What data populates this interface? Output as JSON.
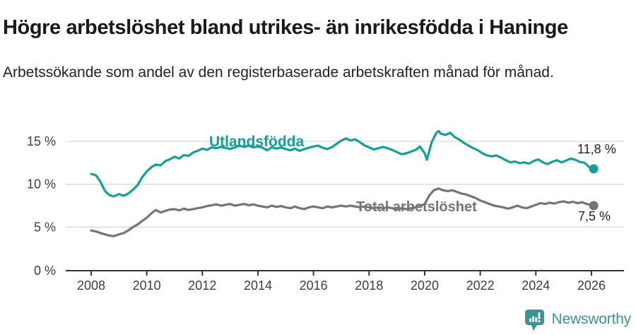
{
  "header": {
    "title": "Högre arbetslöshet bland utrikes- än inrikesfödda i Haninge",
    "subtitle": "Arbetssökande som andel av den registerbaserade arbetskraften månad för månad."
  },
  "footer": {
    "brand": "Newsworthy",
    "logo_icon": "bar-chart-speech-bubble-icon",
    "brand_color": "#3d948d"
  },
  "colors": {
    "accent_teal": "#14a098",
    "neutral_gray": "#757575",
    "axis_line": "#333333",
    "grid_line": "#d9d9d9",
    "tick_text": "#3d3d3d",
    "value_text": "#1f1f1f"
  },
  "chart_data": {
    "type": "line",
    "title": "Högre arbetslöshet bland utrikes- än inrikesfödda i Haninge",
    "subtitle": "Arbetssökande som andel av den registerbaserade arbetskraften månad för månad.",
    "xlabel": "",
    "ylabel": "",
    "xlim": [
      2007.1,
      2027.2
    ],
    "ylim": [
      0,
      17.5
    ],
    "grid": true,
    "legend_position": "inline-labels",
    "y_ticks": [
      0,
      5,
      10,
      15
    ],
    "y_tick_labels": [
      "0 %",
      "5 %",
      "10 %",
      "15 %"
    ],
    "x_ticks": [
      2008,
      2010,
      2012,
      2014,
      2016,
      2018,
      2020,
      2022,
      2024,
      2026
    ],
    "x_tick_labels": [
      "2008",
      "2010",
      "2012",
      "2014",
      "2016",
      "2018",
      "2020",
      "2022",
      "2024",
      "2026"
    ],
    "series": [
      {
        "name": "Utlandsfödda",
        "color": "#14a098",
        "end_value_label": "11,8 %",
        "end_marker": true,
        "points": [
          [
            2008.0,
            11.2
          ],
          [
            2008.17,
            11.05
          ],
          [
            2008.33,
            10.3
          ],
          [
            2008.5,
            9.2
          ],
          [
            2008.67,
            8.7
          ],
          [
            2008.83,
            8.6
          ],
          [
            2009.0,
            8.85
          ],
          [
            2009.17,
            8.65
          ],
          [
            2009.33,
            8.9
          ],
          [
            2009.5,
            9.35
          ],
          [
            2009.67,
            9.9
          ],
          [
            2009.83,
            10.8
          ],
          [
            2010.0,
            11.5
          ],
          [
            2010.17,
            12.0
          ],
          [
            2010.33,
            12.3
          ],
          [
            2010.5,
            12.2
          ],
          [
            2010.67,
            12.7
          ],
          [
            2010.83,
            12.9
          ],
          [
            2011.0,
            13.2
          ],
          [
            2011.17,
            13.0
          ],
          [
            2011.33,
            13.4
          ],
          [
            2011.5,
            13.3
          ],
          [
            2011.67,
            13.7
          ],
          [
            2011.83,
            13.9
          ],
          [
            2012.0,
            14.15
          ],
          [
            2012.17,
            14.0
          ],
          [
            2012.33,
            14.3
          ],
          [
            2012.5,
            14.2
          ],
          [
            2012.67,
            14.35
          ],
          [
            2012.83,
            14.25
          ],
          [
            2013.0,
            14.1
          ],
          [
            2013.17,
            14.3
          ],
          [
            2013.33,
            14.5
          ],
          [
            2013.5,
            14.35
          ],
          [
            2013.67,
            14.5
          ],
          [
            2013.83,
            14.3
          ],
          [
            2014.0,
            14.4
          ],
          [
            2014.17,
            14.25
          ],
          [
            2014.33,
            13.95
          ],
          [
            2014.5,
            14.3
          ],
          [
            2014.67,
            14.15
          ],
          [
            2014.83,
            14.3
          ],
          [
            2015.0,
            14.1
          ],
          [
            2015.17,
            13.95
          ],
          [
            2015.33,
            14.15
          ],
          [
            2015.5,
            13.9
          ],
          [
            2015.67,
            14.1
          ],
          [
            2015.83,
            14.25
          ],
          [
            2016.0,
            14.4
          ],
          [
            2016.17,
            14.5
          ],
          [
            2016.33,
            14.25
          ],
          [
            2016.5,
            14.1
          ],
          [
            2016.67,
            14.35
          ],
          [
            2016.83,
            14.7
          ],
          [
            2017.0,
            15.1
          ],
          [
            2017.17,
            15.35
          ],
          [
            2017.33,
            15.1
          ],
          [
            2017.5,
            15.25
          ],
          [
            2017.67,
            14.9
          ],
          [
            2017.83,
            14.55
          ],
          [
            2018.0,
            14.3
          ],
          [
            2018.17,
            14.05
          ],
          [
            2018.33,
            14.2
          ],
          [
            2018.5,
            14.35
          ],
          [
            2018.67,
            14.2
          ],
          [
            2018.83,
            14.0
          ],
          [
            2019.0,
            13.75
          ],
          [
            2019.17,
            13.5
          ],
          [
            2019.33,
            13.6
          ],
          [
            2019.5,
            13.8
          ],
          [
            2019.67,
            14.0
          ],
          [
            2019.83,
            14.4
          ],
          [
            2020.0,
            13.6
          ],
          [
            2020.08,
            12.85
          ],
          [
            2020.25,
            14.9
          ],
          [
            2020.42,
            16.0
          ],
          [
            2020.5,
            16.2
          ],
          [
            2020.58,
            15.9
          ],
          [
            2020.75,
            15.75
          ],
          [
            2020.92,
            16.0
          ],
          [
            2021.08,
            15.5
          ],
          [
            2021.25,
            15.2
          ],
          [
            2021.42,
            14.8
          ],
          [
            2021.58,
            14.5
          ],
          [
            2021.75,
            14.2
          ],
          [
            2021.92,
            13.95
          ],
          [
            2022.08,
            13.6
          ],
          [
            2022.25,
            13.35
          ],
          [
            2022.42,
            13.25
          ],
          [
            2022.58,
            13.35
          ],
          [
            2022.75,
            13.1
          ],
          [
            2022.92,
            12.8
          ],
          [
            2023.08,
            12.55
          ],
          [
            2023.25,
            12.65
          ],
          [
            2023.42,
            12.45
          ],
          [
            2023.58,
            12.55
          ],
          [
            2023.75,
            12.4
          ],
          [
            2023.92,
            12.7
          ],
          [
            2024.08,
            12.9
          ],
          [
            2024.25,
            12.55
          ],
          [
            2024.42,
            12.35
          ],
          [
            2024.58,
            12.6
          ],
          [
            2024.75,
            12.8
          ],
          [
            2024.92,
            12.55
          ],
          [
            2025.08,
            12.75
          ],
          [
            2025.25,
            13.0
          ],
          [
            2025.42,
            12.85
          ],
          [
            2025.58,
            12.6
          ],
          [
            2025.75,
            12.5
          ],
          [
            2025.92,
            12.0
          ],
          [
            2026.08,
            11.8
          ]
        ]
      },
      {
        "name": "Total arbetslöshet",
        "color": "#757575",
        "end_value_label": "7,5 %",
        "end_marker": true,
        "points": [
          [
            2008.0,
            4.6
          ],
          [
            2008.17,
            4.5
          ],
          [
            2008.33,
            4.3
          ],
          [
            2008.5,
            4.15
          ],
          [
            2008.67,
            4.0
          ],
          [
            2008.83,
            3.95
          ],
          [
            2009.0,
            4.15
          ],
          [
            2009.17,
            4.3
          ],
          [
            2009.33,
            4.6
          ],
          [
            2009.5,
            5.0
          ],
          [
            2009.67,
            5.3
          ],
          [
            2009.83,
            5.7
          ],
          [
            2010.0,
            6.1
          ],
          [
            2010.17,
            6.6
          ],
          [
            2010.33,
            7.0
          ],
          [
            2010.5,
            6.7
          ],
          [
            2010.67,
            6.9
          ],
          [
            2010.83,
            7.05
          ],
          [
            2011.0,
            7.1
          ],
          [
            2011.17,
            6.95
          ],
          [
            2011.33,
            7.15
          ],
          [
            2011.5,
            7.0
          ],
          [
            2011.67,
            7.1
          ],
          [
            2011.83,
            7.2
          ],
          [
            2012.0,
            7.3
          ],
          [
            2012.17,
            7.45
          ],
          [
            2012.33,
            7.55
          ],
          [
            2012.5,
            7.65
          ],
          [
            2012.67,
            7.5
          ],
          [
            2012.83,
            7.6
          ],
          [
            2013.0,
            7.7
          ],
          [
            2013.17,
            7.5
          ],
          [
            2013.33,
            7.6
          ],
          [
            2013.5,
            7.7
          ],
          [
            2013.67,
            7.55
          ],
          [
            2013.83,
            7.65
          ],
          [
            2014.0,
            7.5
          ],
          [
            2014.17,
            7.4
          ],
          [
            2014.33,
            7.3
          ],
          [
            2014.5,
            7.5
          ],
          [
            2014.67,
            7.35
          ],
          [
            2014.83,
            7.45
          ],
          [
            2015.0,
            7.3
          ],
          [
            2015.17,
            7.2
          ],
          [
            2015.33,
            7.4
          ],
          [
            2015.5,
            7.2
          ],
          [
            2015.67,
            7.1
          ],
          [
            2015.83,
            7.3
          ],
          [
            2016.0,
            7.4
          ],
          [
            2016.17,
            7.3
          ],
          [
            2016.33,
            7.2
          ],
          [
            2016.5,
            7.4
          ],
          [
            2016.67,
            7.3
          ],
          [
            2016.83,
            7.4
          ],
          [
            2017.0,
            7.5
          ],
          [
            2017.17,
            7.4
          ],
          [
            2017.33,
            7.5
          ],
          [
            2017.5,
            7.4
          ],
          [
            2017.67,
            7.3
          ],
          [
            2017.83,
            7.4
          ],
          [
            2018.0,
            7.3
          ],
          [
            2018.17,
            7.2
          ],
          [
            2018.33,
            7.3
          ],
          [
            2018.5,
            7.2
          ],
          [
            2018.67,
            7.3
          ],
          [
            2018.83,
            7.2
          ],
          [
            2019.0,
            7.1
          ],
          [
            2019.17,
            7.2
          ],
          [
            2019.33,
            7.1
          ],
          [
            2019.5,
            7.2
          ],
          [
            2019.67,
            7.3
          ],
          [
            2019.83,
            7.45
          ],
          [
            2020.0,
            7.7
          ],
          [
            2020.17,
            8.7
          ],
          [
            2020.33,
            9.3
          ],
          [
            2020.5,
            9.5
          ],
          [
            2020.67,
            9.3
          ],
          [
            2020.83,
            9.2
          ],
          [
            2021.0,
            9.3
          ],
          [
            2021.17,
            9.1
          ],
          [
            2021.33,
            8.9
          ],
          [
            2021.5,
            8.8
          ],
          [
            2021.67,
            8.6
          ],
          [
            2021.83,
            8.4
          ],
          [
            2022.0,
            8.1
          ],
          [
            2022.17,
            7.9
          ],
          [
            2022.33,
            7.7
          ],
          [
            2022.5,
            7.5
          ],
          [
            2022.67,
            7.4
          ],
          [
            2022.83,
            7.3
          ],
          [
            2023.0,
            7.15
          ],
          [
            2023.17,
            7.3
          ],
          [
            2023.33,
            7.5
          ],
          [
            2023.5,
            7.3
          ],
          [
            2023.67,
            7.2
          ],
          [
            2023.83,
            7.4
          ],
          [
            2024.0,
            7.6
          ],
          [
            2024.17,
            7.8
          ],
          [
            2024.33,
            7.7
          ],
          [
            2024.5,
            7.85
          ],
          [
            2024.67,
            7.75
          ],
          [
            2024.83,
            7.9
          ],
          [
            2025.0,
            8.0
          ],
          [
            2025.17,
            7.85
          ],
          [
            2025.33,
            7.95
          ],
          [
            2025.5,
            7.8
          ],
          [
            2025.67,
            7.9
          ],
          [
            2025.83,
            7.7
          ],
          [
            2026.0,
            7.6
          ],
          [
            2026.08,
            7.5
          ]
        ]
      }
    ]
  }
}
